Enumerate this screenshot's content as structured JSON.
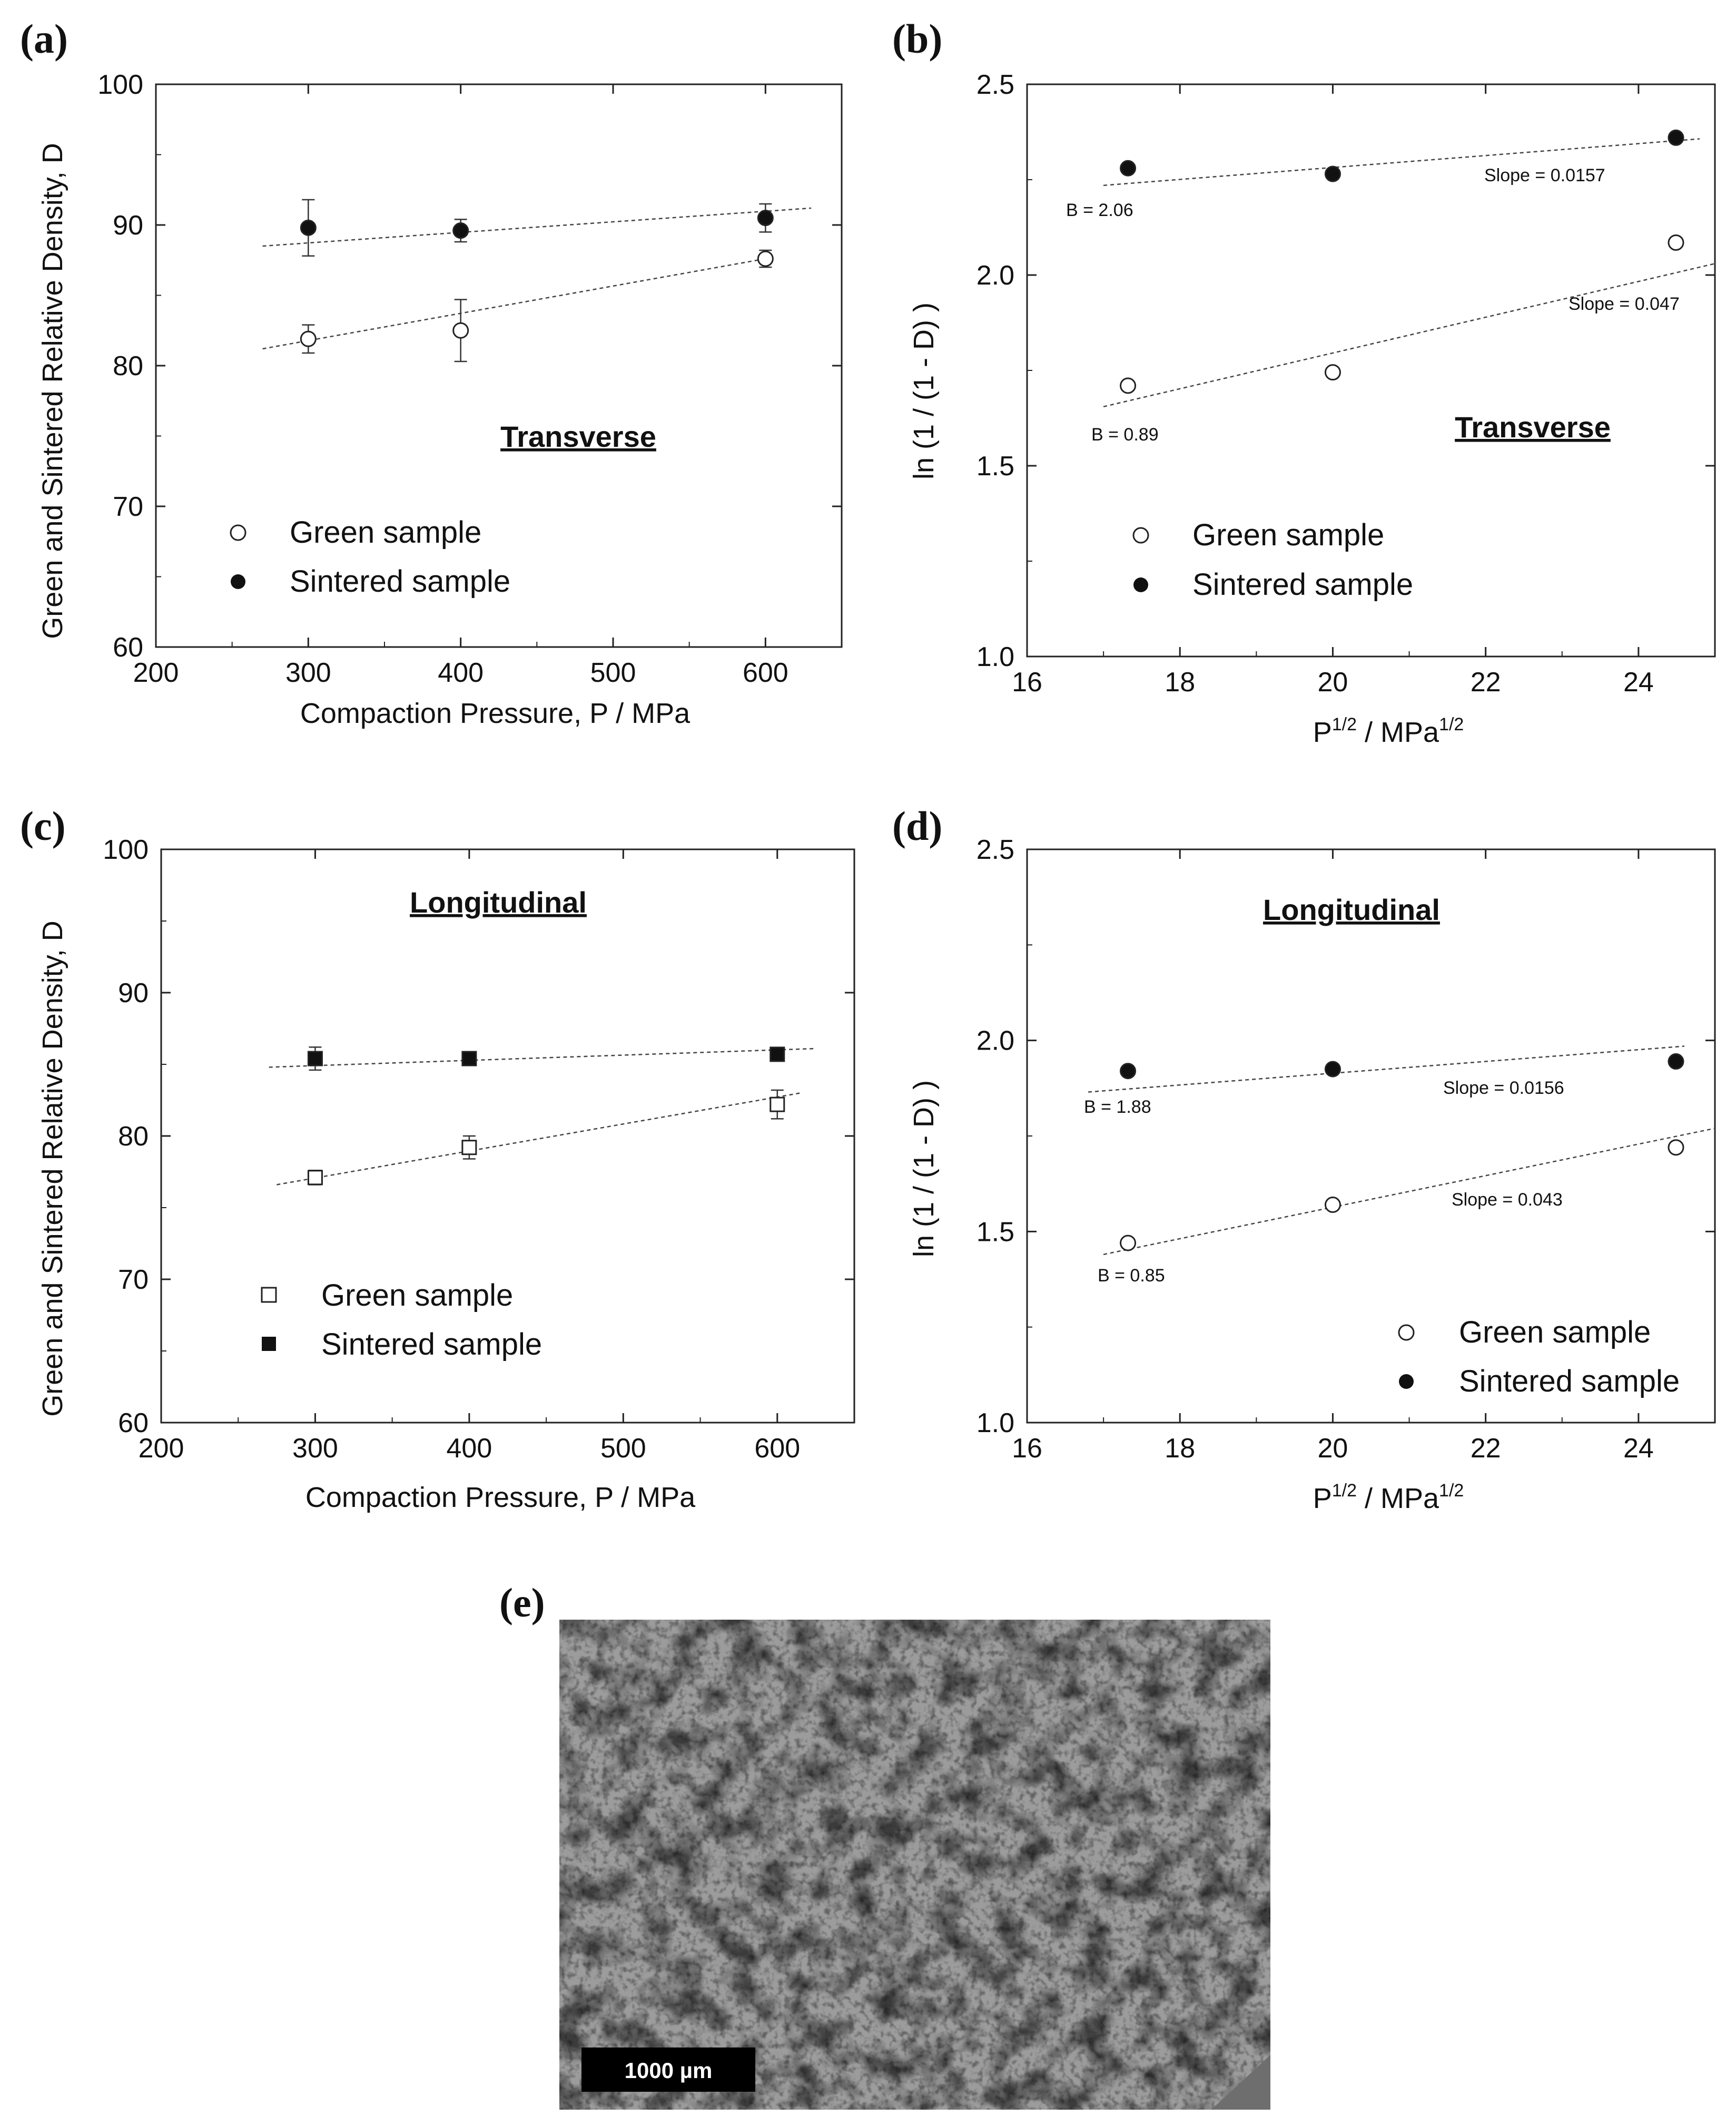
{
  "panels": [
    {
      "id": "a",
      "label": "(a)",
      "title": "Transverse",
      "xlabel": "Compaction Pressure, P  /  MPa",
      "ylabel": "Green and Sintered Relative Density, D"
    },
    {
      "id": "b",
      "label": "(b)",
      "title": "Transverse",
      "xlabel": "P^1/2  /  MPa^1/2",
      "ylabel": "ln (1 / (1 - D) )"
    },
    {
      "id": "c",
      "label": "(c)",
      "title": "Longitudinal",
      "xlabel": "Compaction Pressure, P  /  MPa",
      "ylabel": "Green and Sintered Relative Density, D"
    },
    {
      "id": "d",
      "label": "(d)",
      "title": "Longitudinal",
      "xlabel": "P^1/2  /  MPa^1/2",
      "ylabel": "ln (1 / (1 - D) )"
    },
    {
      "id": "e",
      "label": "(e)",
      "scale_bar": "1000 µm"
    }
  ],
  "legend": {
    "green": "Green sample",
    "sintered": "Sintered sample"
  },
  "chart_data": [
    {
      "panel": "a",
      "type": "scatter",
      "title": "Transverse",
      "xlabel": "Compaction Pressure, P  /  MPa",
      "ylabel": "Green and Sintered Relative Density, D",
      "xlim": [
        200,
        650
      ],
      "ylim": [
        60,
        100
      ],
      "xticks": [
        200,
        300,
        400,
        500,
        600
      ],
      "yticks": [
        60,
        70,
        80,
        90,
        100
      ],
      "marker": "circle",
      "series": [
        {
          "name": "Green sample",
          "fill": "open",
          "x": [
            300,
            400,
            600
          ],
          "y": [
            81.9,
            82.5,
            87.6
          ],
          "err": [
            1.0,
            2.2,
            0.6
          ],
          "fit": {
            "x": [
              270,
              600
            ],
            "y": [
              81.2,
              87.6
            ]
          }
        },
        {
          "name": "Sintered sample",
          "fill": "solid",
          "x": [
            300,
            400,
            600
          ],
          "y": [
            89.8,
            89.6,
            90.5
          ],
          "err": [
            2.0,
            0.8,
            1.0
          ],
          "fit": {
            "x": [
              270,
              630
            ],
            "y": [
              88.5,
              91.2
            ]
          }
        }
      ],
      "legend": "lower-left",
      "grid": false
    },
    {
      "panel": "b",
      "type": "scatter",
      "title": "Transverse",
      "xlabel": "P^1/2  /  MPa^1/2",
      "ylabel": "ln (1 / (1 - D) )",
      "xlim": [
        16,
        25
      ],
      "ylim": [
        1.0,
        2.5
      ],
      "xticks": [
        16,
        18,
        20,
        22,
        24
      ],
      "yticks": [
        1.0,
        1.5,
        2.0,
        2.5
      ],
      "marker": "circle",
      "series": [
        {
          "name": "Green sample",
          "fill": "open",
          "x": [
            17.32,
            20.0,
            24.49
          ],
          "y": [
            1.71,
            1.745,
            2.085
          ],
          "fit": {
            "x": [
              17.0,
              25.0
            ],
            "y": [
              1.655,
              2.03
            ]
          }
        },
        {
          "name": "Sintered sample",
          "fill": "solid",
          "x": [
            17.32,
            20.0,
            24.49
          ],
          "y": [
            2.28,
            2.265,
            2.36
          ],
          "fit": {
            "x": [
              17.0,
              24.8
            ],
            "y": [
              2.235,
              2.357
            ]
          }
        }
      ],
      "annotations": [
        "B = 2.06",
        "Slope = 0.0157",
        "B = 0.89",
        "Slope = 0.047"
      ],
      "legend": "lower-left",
      "grid": false
    },
    {
      "panel": "c",
      "type": "scatter",
      "title": "Longitudinal",
      "xlabel": "Compaction Pressure, P  /  MPa",
      "ylabel": "Green and Sintered Relative Density, D",
      "xlim": [
        200,
        650
      ],
      "ylim": [
        60,
        100
      ],
      "xticks": [
        200,
        300,
        400,
        500,
        600
      ],
      "yticks": [
        60,
        70,
        80,
        90,
        100
      ],
      "marker": "square",
      "series": [
        {
          "name": "Green sample",
          "fill": "open",
          "x": [
            300,
            400,
            600
          ],
          "y": [
            77.1,
            79.2,
            82.2
          ],
          "err": [
            0.5,
            0.8,
            1.0
          ],
          "fit": {
            "x": [
              275,
              615
            ],
            "y": [
              76.6,
              83.0
            ]
          }
        },
        {
          "name": "Sintered sample",
          "fill": "solid",
          "x": [
            300,
            400,
            600
          ],
          "y": [
            85.4,
            85.4,
            85.7
          ],
          "err": [
            0.8,
            0.3,
            0.3
          ],
          "fit": {
            "x": [
              270,
              625
            ],
            "y": [
              84.8,
              86.1
            ]
          }
        }
      ],
      "legend": "lower-left",
      "grid": false
    },
    {
      "panel": "d",
      "type": "scatter",
      "title": "Longitudinal",
      "xlabel": "P^1/2  /  MPa^1/2",
      "ylabel": "ln (1 / (1 - D) )",
      "xlim": [
        16,
        25
      ],
      "ylim": [
        1.0,
        2.5
      ],
      "xticks": [
        16,
        18,
        20,
        22,
        24
      ],
      "yticks": [
        1.0,
        1.5,
        2.0,
        2.5
      ],
      "marker": "circle",
      "series": [
        {
          "name": "Green sample",
          "fill": "open",
          "x": [
            17.32,
            20.0,
            24.49
          ],
          "y": [
            1.47,
            1.57,
            1.72
          ],
          "fit": {
            "x": [
              17.0,
              25.0
            ],
            "y": [
              1.44,
              1.77
            ]
          }
        },
        {
          "name": "Sintered sample",
          "fill": "solid",
          "x": [
            17.32,
            20.0,
            24.49
          ],
          "y": [
            1.92,
            1.925,
            1.945
          ],
          "fit": {
            "x": [
              16.8,
              24.6
            ],
            "y": [
              1.865,
              1.985
            ]
          }
        }
      ],
      "annotations": [
        "B = 1.88",
        "Slope = 0.0156",
        "Slope = 0.043",
        "B = 0.85"
      ],
      "legend": "lower-right",
      "grid": false
    }
  ]
}
